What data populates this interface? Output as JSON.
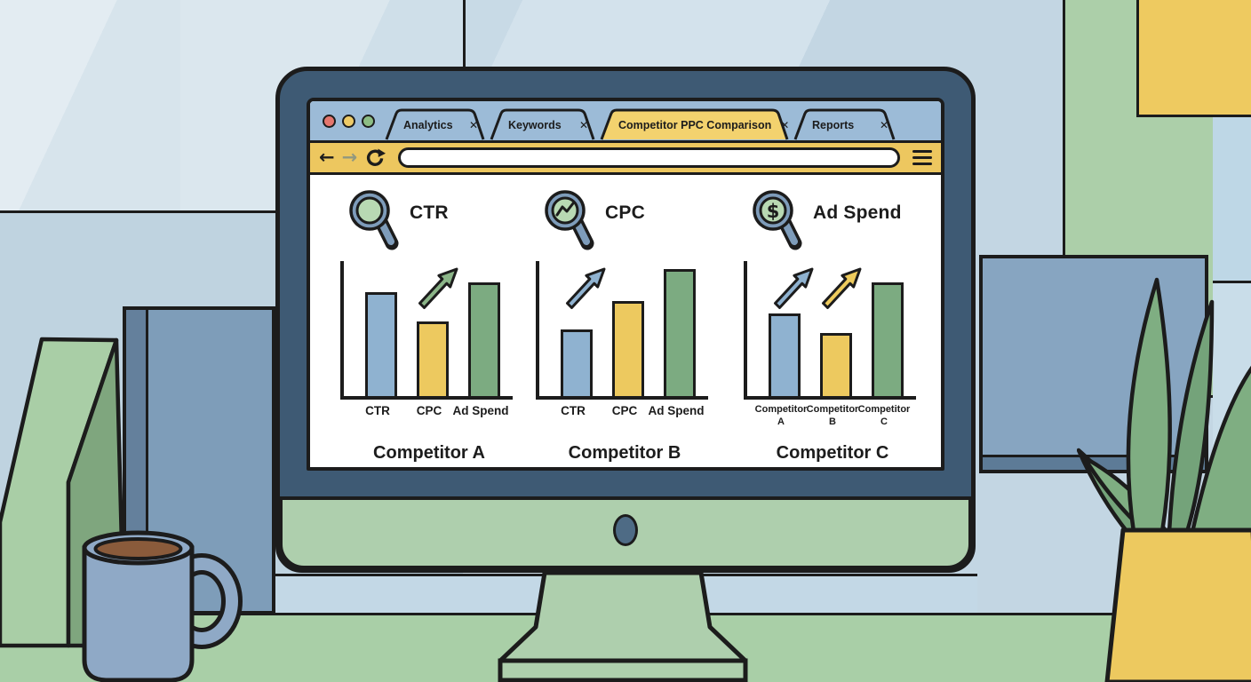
{
  "colors": {
    "ink": "#1c1c1c",
    "bar_blue": "#8fb2d0",
    "bar_yellow": "#edc95f",
    "bar_green": "#7cab81",
    "arrow_green": "#8bb588",
    "arrow_blue": "#8fb2d0",
    "arrow_yellow": "#eecb5d",
    "magnifier_rim": "#7e9cba",
    "magnifier_lens": "#b8d9b3",
    "browser_tab_bar": "#9cbbd7",
    "browser_toolbar": "#edc75f",
    "browser_active_tab": "#f3d26e",
    "traffic_red": "#e4766d",
    "traffic_yellow": "#edca67",
    "traffic_green": "#8cbd84",
    "monitor_bezel": "#3e5a74",
    "monitor_chin": "#aecfad",
    "desk": "#a9cfa7"
  },
  "browser": {
    "traffic_lights": [
      {
        "name": "traffic-light-red",
        "color_key": "traffic_red"
      },
      {
        "name": "traffic-light-yellow",
        "color_key": "traffic_yellow"
      },
      {
        "name": "traffic-light-green",
        "color_key": "traffic_green"
      }
    ],
    "tabs": [
      {
        "label": "Analytics",
        "close_label": "✕",
        "active": false
      },
      {
        "label": "Keywords",
        "close_label": "✕",
        "active": false
      },
      {
        "label": "Competitor PPC Comparison",
        "close_label": "✕",
        "active": true
      },
      {
        "label": "Reports",
        "close_label": "✕",
        "active": false
      }
    ],
    "toolbar": {
      "back_label": "←",
      "forward_label": "→",
      "menu_label": "≡",
      "url_value": "",
      "url_placeholder": ""
    }
  },
  "chart_data": [
    {
      "type": "bar",
      "title": "CTR",
      "icon": "magnifier-icon",
      "categories": [
        "CTR",
        "CPC",
        "Ad Spend"
      ],
      "values": [
        78,
        56,
        85
      ],
      "ylim": [
        0,
        100
      ],
      "grid": false,
      "bar_color_keys": [
        "bar_blue",
        "bar_yellow",
        "bar_green"
      ],
      "arrows": [
        {
          "color_key": "arrow_green",
          "slot": 1
        }
      ],
      "caption": "Competitor A"
    },
    {
      "type": "bar",
      "title": "CPC",
      "icon": "magnifier-trendline-icon",
      "categories": [
        "CTR",
        "CPC",
        "Ad Spend"
      ],
      "values": [
        50,
        71,
        95
      ],
      "ylim": [
        0,
        100
      ],
      "grid": false,
      "bar_color_keys": [
        "bar_blue",
        "bar_yellow",
        "bar_green"
      ],
      "arrows": [
        {
          "color_key": "arrow_blue",
          "slot": 0
        }
      ],
      "caption": "Competitor B"
    },
    {
      "type": "bar",
      "title": "Ad Spend",
      "icon": "magnifier-dollar-icon",
      "categories": [
        "Competitor A",
        "Competitor B",
        "Competitor C"
      ],
      "values": [
        62,
        47,
        85
      ],
      "ylim": [
        0,
        100
      ],
      "grid": false,
      "bar_color_keys": [
        "bar_blue",
        "bar_yellow",
        "bar_green"
      ],
      "arrows": [
        {
          "color_key": "arrow_blue",
          "slot": 0
        },
        {
          "color_key": "arrow_yellow",
          "slot": 1
        }
      ],
      "caption": "Competitor C"
    }
  ]
}
